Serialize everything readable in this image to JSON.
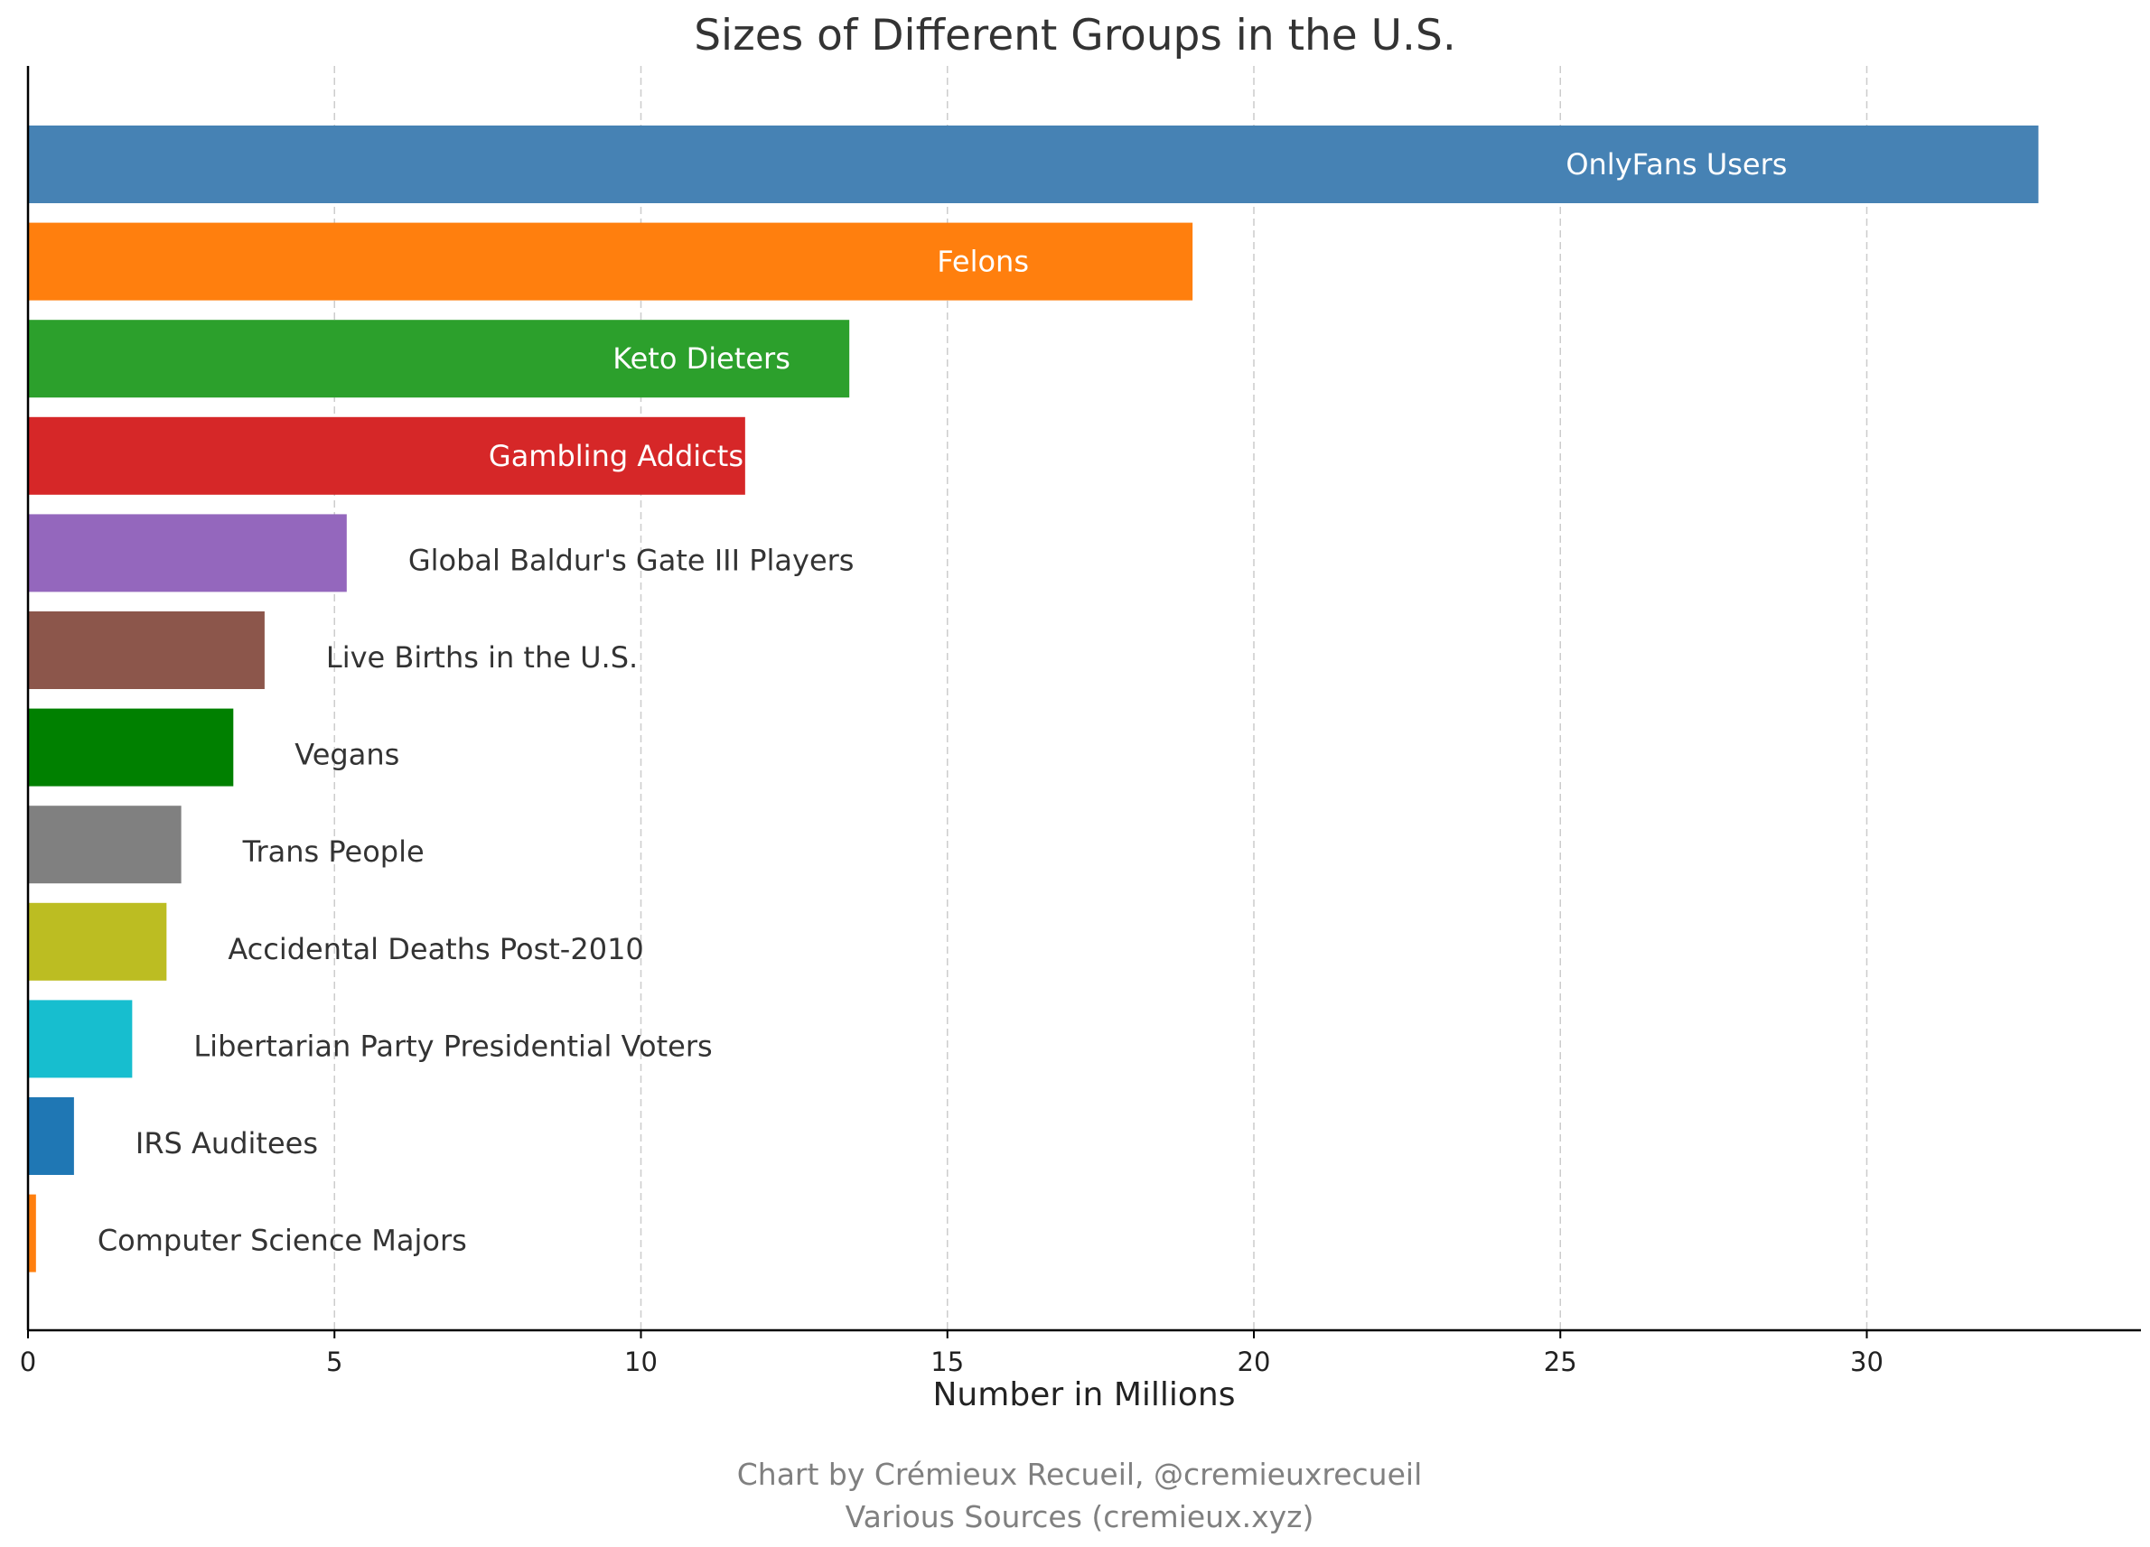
{
  "chart_data": {
    "type": "bar",
    "orientation": "horizontal",
    "title": "Sizes of Different Groups in the U.S.",
    "xlabel": "Number in Millions",
    "ylabel": "",
    "xlim": [
      0,
      34.5
    ],
    "xticks": [
      0,
      5,
      10,
      15,
      20,
      25,
      30
    ],
    "grid": "vertical dashed",
    "categories": [
      "OnlyFans Users",
      "Felons",
      "Keto Dieters",
      "Gambling Addicts",
      "Global Baldur's Gate III Players",
      "Live Births in the U.S.",
      "Vegans",
      "Trans People",
      "Accidental Deaths Post-2010",
      "Libertarian Party Presidential Voters",
      "IRS Auditees",
      "Computer Science Majors"
    ],
    "values": [
      32.8,
      19.0,
      13.4,
      11.7,
      5.2,
      3.86,
      3.35,
      2.5,
      2.26,
      1.7,
      0.75,
      0.13
    ],
    "colors": [
      "#4682b4",
      "#ff7f0e",
      "#2ca02c",
      "#d62728",
      "#9467bd",
      "#8c564b",
      "#008000",
      "#808080",
      "#bcbd22",
      "#17becf",
      "#1f77b4",
      "#ff7f0e"
    ],
    "label_inside": [
      true,
      true,
      true,
      true,
      false,
      false,
      false,
      false,
      false,
      false,
      false,
      false
    ],
    "footer": [
      "Chart by Crémieux Recueil, @cremieuxrecueil",
      "Various Sources (cremieux.xyz)"
    ]
  }
}
